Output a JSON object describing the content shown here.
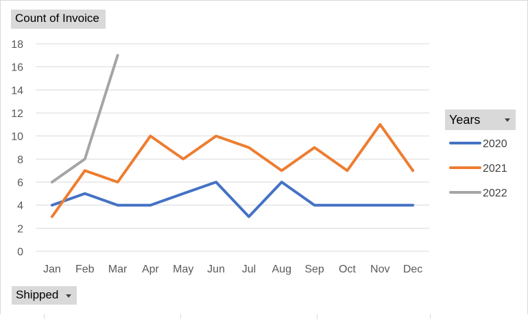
{
  "fields": {
    "value": "Count of Invoice",
    "filter": "Shipped",
    "legend_field": "Years"
  },
  "chart_data": {
    "type": "line",
    "categories": [
      "Jan",
      "Feb",
      "Mar",
      "Apr",
      "May",
      "Jun",
      "Jul",
      "Aug",
      "Sep",
      "Oct",
      "Nov",
      "Dec"
    ],
    "ylim": [
      0,
      18
    ],
    "yticks": [
      0,
      2,
      4,
      6,
      8,
      10,
      12,
      14,
      16,
      18
    ],
    "grid": true,
    "legend": "right",
    "series": [
      {
        "name": "2020",
        "color": "#4472c4",
        "values": [
          4,
          5,
          4,
          4,
          5,
          6,
          3,
          6,
          4,
          4,
          4,
          4
        ]
      },
      {
        "name": "2021",
        "color": "#ed7d31",
        "values": [
          3,
          7,
          6,
          10,
          8,
          10,
          9,
          7,
          9,
          7,
          11,
          7
        ]
      },
      {
        "name": "2022",
        "color": "#a5a5a5",
        "values": [
          6,
          8,
          17,
          null,
          null,
          null,
          null,
          null,
          null,
          null,
          null,
          null
        ]
      }
    ]
  }
}
